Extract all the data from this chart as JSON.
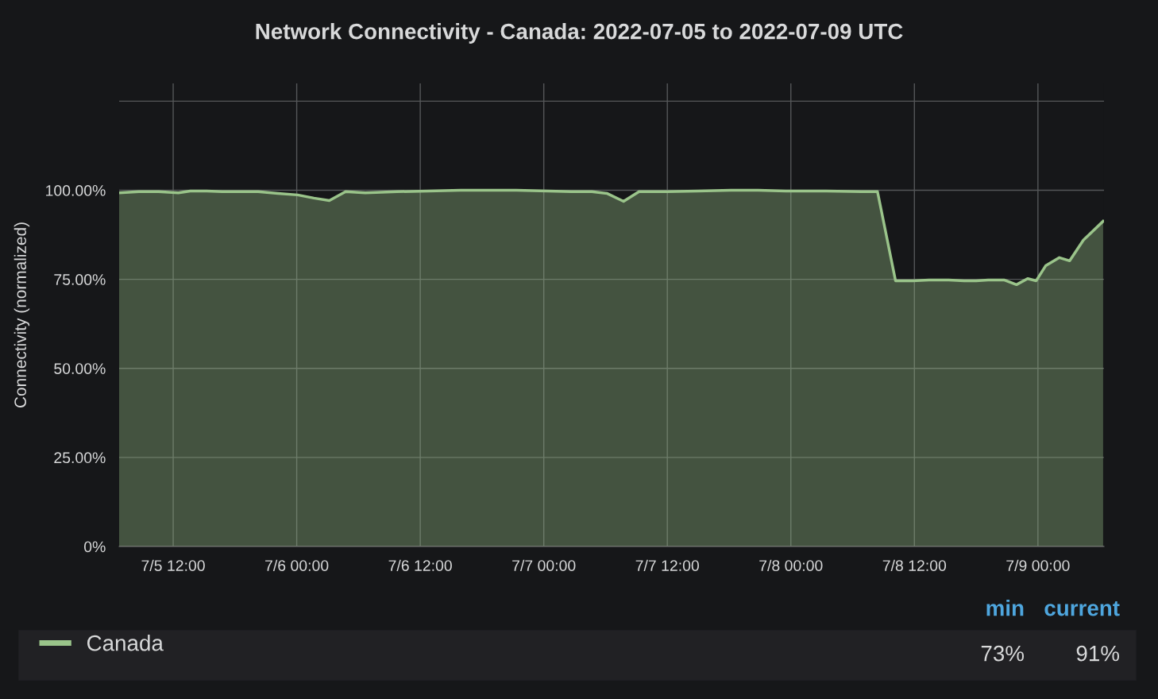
{
  "chart_data": {
    "type": "area",
    "title": "Network Connectivity - Canada: 2022-07-05 to 2022-07-09 UTC",
    "ylabel": "Connectivity (normalized)",
    "x": [
      "2022-07-05T06:45",
      "2022-07-05T08:40",
      "2022-07-05T10:35",
      "2022-07-05T12:30",
      "2022-07-05T13:40",
      "2022-07-05T15:15",
      "2022-07-05T16:45",
      "2022-07-05T18:20",
      "2022-07-05T20:15",
      "2022-07-05T22:10",
      "2022-07-06T00:05",
      "2022-07-06T01:40",
      "2022-07-06T03:10",
      "2022-07-06T04:45",
      "2022-07-06T06:40",
      "2022-07-06T09:45",
      "2022-07-06T12:50",
      "2022-07-06T15:55",
      "2022-07-06T18:15",
      "2022-07-06T21:20",
      "2022-07-07T00:25",
      "2022-07-07T02:40",
      "2022-07-07T04:40",
      "2022-07-07T06:10",
      "2022-07-07T07:45",
      "2022-07-07T09:15",
      "2022-07-07T12:00",
      "2022-07-07T15:00",
      "2022-07-07T18:10",
      "2022-07-07T20:50",
      "2022-07-07T23:30",
      "2022-07-08T03:25",
      "2022-07-08T06:50",
      "2022-07-08T08:25",
      "2022-07-08T10:10",
      "2022-07-08T11:50",
      "2022-07-08T13:25",
      "2022-07-08T15:20",
      "2022-07-08T16:50",
      "2022-07-08T18:00",
      "2022-07-08T19:10",
      "2022-07-08T20:45",
      "2022-07-08T21:55",
      "2022-07-08T23:00",
      "2022-07-08T23:50",
      "2022-07-09T00:45",
      "2022-07-09T02:05",
      "2022-07-09T03:05",
      "2022-07-09T04:25",
      "2022-07-09T06:20"
    ],
    "series": [
      {
        "name": "Canada",
        "color": "#9ac48a",
        "values": [
          99.3,
          99.6,
          99.6,
          99.3,
          99.8,
          99.8,
          99.6,
          99.6,
          99.6,
          99.1,
          98.7,
          97.8,
          97.1,
          99.6,
          99.3,
          99.6,
          99.8,
          100,
          100,
          100,
          99.8,
          99.6,
          99.6,
          99.1,
          96.9,
          99.6,
          99.6,
          99.8,
          100,
          100,
          99.8,
          99.8,
          99.6,
          99.6,
          74.6,
          74.6,
          74.8,
          74.8,
          74.6,
          74.6,
          74.8,
          74.8,
          73.5,
          75.2,
          74.6,
          78.8,
          81.1,
          80.2,
          86,
          91.3
        ]
      }
    ],
    "xlim": [
      "2022-07-05T06:45",
      "2022-07-09T06:25"
    ],
    "xticks": [
      {
        "value": "2022-07-05T12:00",
        "label": "7/5 12:00"
      },
      {
        "value": "2022-07-06T00:00",
        "label": "7/6 00:00"
      },
      {
        "value": "2022-07-06T12:00",
        "label": "7/6 12:00"
      },
      {
        "value": "2022-07-07T00:00",
        "label": "7/7 00:00"
      },
      {
        "value": "2022-07-07T12:00",
        "label": "7/7 12:00"
      },
      {
        "value": "2022-07-08T00:00",
        "label": "7/8 00:00"
      },
      {
        "value": "2022-07-08T12:00",
        "label": "7/8 12:00"
      },
      {
        "value": "2022-07-09T00:00",
        "label": "7/9 00:00"
      }
    ],
    "ylim": [
      0,
      130
    ],
    "yticks": [
      {
        "value": 0,
        "label": "0%"
      },
      {
        "value": 25,
        "label": "25.00%"
      },
      {
        "value": 50,
        "label": "50.00%"
      },
      {
        "value": 75,
        "label": "75.00%"
      },
      {
        "value": 100,
        "label": "100.00%"
      },
      {
        "value": 125,
        "label": null
      }
    ],
    "grid": true,
    "legend": "bottom",
    "annotations": [
      "min",
      "current",
      "73%",
      "91%"
    ]
  }
}
